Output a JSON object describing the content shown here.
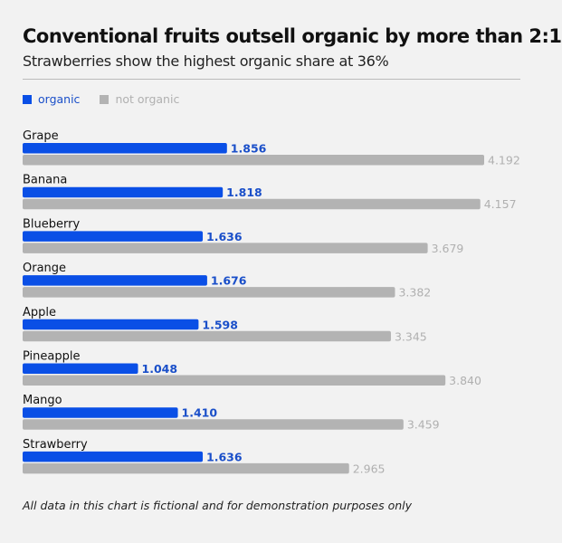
{
  "chart_data": {
    "type": "bar",
    "orientation": "horizontal",
    "title": "Conventional fruits outsell organic by more than 2:1",
    "subtitle": "Strawberries show the highest organic share at 36%",
    "categories": [
      "Grape",
      "Banana",
      "Blueberry",
      "Orange",
      "Apple",
      "Pineapple",
      "Mango",
      "Strawberry"
    ],
    "series": [
      {
        "name": "organic",
        "color": "#0a4fe6",
        "label_color": "#1a4fc9",
        "values": [
          1.856,
          1.818,
          1.636,
          1.676,
          1.598,
          1.048,
          1.41,
          1.636
        ],
        "labels": [
          "1.856",
          "1.818",
          "1.636",
          "1.676",
          "1.598",
          "1.048",
          "1.410",
          "1.636"
        ]
      },
      {
        "name": "not organic",
        "color": "#b3b3b3",
        "label_color": "#b0b0b0",
        "values": [
          4.192,
          4.157,
          3.679,
          3.382,
          3.345,
          3.84,
          3.459,
          2.965
        ],
        "labels": [
          "4.192",
          "4.157",
          "3.679",
          "3.382",
          "3.345",
          "3.840",
          "3.459",
          "2.965"
        ]
      }
    ],
    "legend_position": "top-left",
    "grid": false,
    "xlim": [
      0,
      4.192
    ],
    "footnote": "All data in this chart is fictional and for demonstration purposes only"
  }
}
